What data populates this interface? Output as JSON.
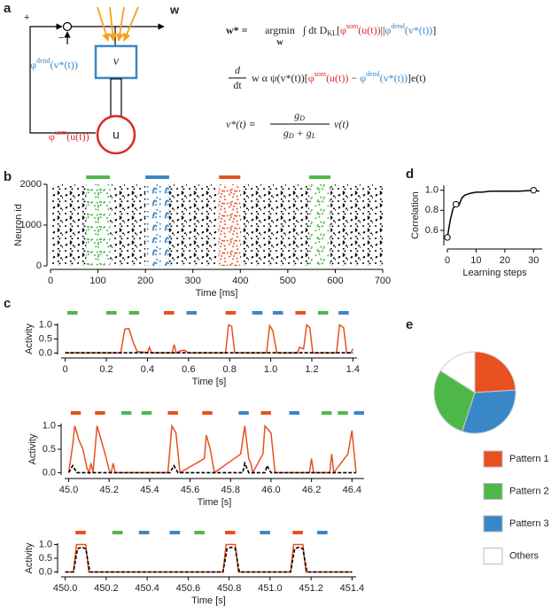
{
  "panel_labels": [
    "a",
    "b",
    "c",
    "d",
    "e"
  ],
  "panel_a": {
    "plus": "+",
    "minus": "−",
    "w": "w",
    "v": "v",
    "u": "u",
    "dend": [
      "φ",
      "dend",
      "(v*(t))"
    ],
    "som": [
      "φ",
      "som",
      "(u(t))"
    ],
    "eq1": [
      "w* =",
      "argmin",
      "w",
      "∫ dt D",
      "KL",
      "[",
      "φ",
      "som",
      "(u(t))",
      "||",
      "φ",
      "dend",
      "(v*(t))",
      "]"
    ],
    "eq2": [
      "d",
      "dt",
      "w α ψ(v*(t))[",
      "φ",
      "som",
      "(u(t))",
      " − ",
      "φ",
      "dend",
      "(v*(t))",
      "]e(t)"
    ],
    "eq3": [
      "v*(t) ≡",
      "g",
      "D",
      "g",
      "D",
      " + g",
      "L",
      "v(t)"
    ]
  },
  "chart_data": [
    {
      "type": "raster",
      "xlabel": "Time [ms]",
      "ylabel": "Neuron id",
      "xlim": [
        0,
        700
      ],
      "xticks": [
        0,
        100,
        200,
        300,
        400,
        500,
        600,
        700
      ],
      "ylim": [
        0,
        2000
      ],
      "yticks": [
        0,
        1000,
        2000
      ],
      "bands": [
        {
          "start": 75,
          "end": 125,
          "color": "#4db848"
        },
        {
          "start": 200,
          "end": 250,
          "color": "#3a87c8"
        },
        {
          "start": 355,
          "end": 400,
          "color": "#e8501f"
        },
        {
          "start": 545,
          "end": 590,
          "color": "#4db848"
        }
      ]
    },
    {
      "type": "line",
      "xlabel": "Learning steps",
      "ylabel": "Correlation",
      "xlim": [
        0,
        33
      ],
      "xticks": [
        0,
        10,
        20,
        30
      ],
      "ylim": [
        0.45,
        1.05
      ],
      "yticks": [
        0.6,
        0.8,
        {
          "value": 1.0,
          "label": "1.0"
        }
      ],
      "series": [
        {
          "color": "#000000",
          "x": [
            0,
            1,
            2,
            3,
            4,
            5,
            6,
            7,
            8,
            10,
            12,
            15,
            20,
            25,
            30,
            32
          ],
          "values": [
            0.53,
            0.7,
            0.82,
            0.86,
            0.85,
            0.92,
            0.95,
            0.96,
            0.97,
            0.98,
            0.98,
            0.99,
            0.99,
            0.99,
            1.0,
            0.99
          ]
        }
      ],
      "markers": {
        "x": [
          0,
          3,
          30
        ],
        "values": [
          0.53,
          0.86,
          1.0
        ]
      }
    },
    {
      "type": "line",
      "xlabel": "Time [s]",
      "ylabel": "Activity",
      "xlim": [
        -0.02,
        1.42
      ],
      "xticks": [
        0,
        0.2,
        0.4,
        0.6,
        0.8,
        {
          "value": 1.0,
          "label": "1.0"
        },
        1.2,
        1.4
      ],
      "ylim": [
        -0.05,
        1.05
      ],
      "yticks": [
        {
          "value": 0,
          "label": "0.0"
        },
        0.5,
        {
          "value": 1,
          "label": "1.0"
        }
      ],
      "bars": [
        {
          "start": 0.01,
          "end": 0.06,
          "color": "#4db848"
        },
        {
          "start": 0.2,
          "end": 0.25,
          "color": "#4db848"
        },
        {
          "start": 0.31,
          "end": 0.36,
          "color": "#4db848"
        },
        {
          "start": 0.48,
          "end": 0.53,
          "color": "#e8501f"
        },
        {
          "start": 0.59,
          "end": 0.64,
          "color": "#3a87c8"
        },
        {
          "start": 0.78,
          "end": 0.83,
          "color": "#e8501f"
        },
        {
          "start": 0.91,
          "end": 0.96,
          "color": "#3a87c8"
        },
        {
          "start": 1.01,
          "end": 1.06,
          "color": "#3a87c8"
        },
        {
          "start": 1.12,
          "end": 1.17,
          "color": "#e8501f"
        },
        {
          "start": 1.23,
          "end": 1.28,
          "color": "#4db848"
        },
        {
          "start": 1.33,
          "end": 1.38,
          "color": "#3a87c8"
        }
      ],
      "series": [
        {
          "color": "#e8501f",
          "x": [
            0,
            0.27,
            0.29,
            0.31,
            0.33,
            0.35,
            0.4,
            0.41,
            0.42,
            0.52,
            0.53,
            0.54,
            0.56,
            0.58,
            0.6,
            0.78,
            0.795,
            0.81,
            0.825,
            0.98,
            0.995,
            1.01,
            1.03,
            1.13,
            1.14,
            1.16,
            1.175,
            1.19,
            1.205,
            1.32,
            1.335,
            1.355,
            1.37,
            1.39,
            1.4
          ],
          "values": [
            0,
            0,
            0.85,
            0.87,
            0.4,
            0.05,
            0.02,
            0.2,
            0,
            0,
            0.3,
            0,
            0.08,
            0.1,
            0,
            0,
            1.0,
            0.95,
            0,
            0,
            0.97,
            0.8,
            0,
            0,
            0.2,
            0.15,
            1.0,
            0.9,
            0,
            0,
            1.0,
            0.9,
            0,
            0,
            0.15
          ]
        },
        {
          "color": "#000000",
          "dash": true,
          "x": [
            0,
            1.4
          ],
          "values": [
            0.01,
            0.01
          ]
        }
      ]
    },
    {
      "type": "line",
      "xlabel": "Time [s]",
      "ylabel": "Activity",
      "xlim": [
        44.98,
        46.46
      ],
      "xticks": [
        {
          "value": 45.0,
          "label": "45.0"
        },
        45.2,
        45.4,
        45.6,
        45.8,
        {
          "value": 46.0,
          "label": "46.0"
        },
        46.2,
        46.4
      ],
      "ylim": [
        -0.05,
        1.05
      ],
      "yticks": [
        {
          "value": 0,
          "label": "0.0"
        },
        0.5,
        {
          "value": 1,
          "label": "1.0"
        }
      ],
      "bars": [
        {
          "start": 45.01,
          "end": 45.06,
          "color": "#e8501f"
        },
        {
          "start": 45.13,
          "end": 45.18,
          "color": "#e8501f"
        },
        {
          "start": 45.26,
          "end": 45.31,
          "color": "#4db848"
        },
        {
          "start": 45.36,
          "end": 45.41,
          "color": "#4db848"
        },
        {
          "start": 45.49,
          "end": 45.54,
          "color": "#e8501f"
        },
        {
          "start": 45.66,
          "end": 45.71,
          "color": "#e8501f"
        },
        {
          "start": 45.84,
          "end": 45.89,
          "color": "#3a87c8"
        },
        {
          "start": 45.95,
          "end": 46.0,
          "color": "#e8501f"
        },
        {
          "start": 46.09,
          "end": 46.14,
          "color": "#3a87c8"
        },
        {
          "start": 46.25,
          "end": 46.3,
          "color": "#4db848"
        },
        {
          "start": 46.33,
          "end": 46.38,
          "color": "#4db848"
        },
        {
          "start": 46.41,
          "end": 46.46,
          "color": "#3a87c8"
        }
      ],
      "series": [
        {
          "color": "#e8501f",
          "x": [
            45.0,
            45.02,
            45.03,
            45.05,
            45.07,
            45.09,
            45.1,
            45.11,
            45.12,
            45.13,
            45.14,
            45.16,
            45.18,
            45.2,
            45.21,
            45.22,
            45.23,
            45.49,
            45.5,
            45.51,
            45.53,
            45.55,
            45.67,
            45.68,
            45.7,
            45.72,
            45.85,
            45.87,
            45.89,
            45.9,
            45.91,
            45.96,
            45.97,
            46.0,
            46.02,
            46.19,
            46.2,
            46.21,
            46.29,
            46.3,
            46.31,
            46.38,
            46.4,
            46.42
          ],
          "values": [
            0,
            0.6,
            1.0,
            0.7,
            0.5,
            0.1,
            0,
            0.2,
            0,
            0.5,
            1.0,
            0.7,
            0.4,
            0.05,
            0,
            0.2,
            0,
            0,
            0.5,
            1.0,
            0.85,
            0,
            0.3,
            0.8,
            0.5,
            0,
            0.4,
            1.0,
            0.3,
            0.2,
            0,
            0.4,
            1.0,
            0.85,
            0,
            0,
            0.3,
            0,
            0,
            0.4,
            0,
            0.4,
            0.9,
            0
          ]
        },
        {
          "color": "#000000",
          "dash": true,
          "x": [
            45.0,
            45.02,
            45.04,
            45.5,
            45.52,
            45.54,
            45.86,
            45.87,
            45.89,
            45.97,
            45.98,
            46.0,
            46.42
          ],
          "values": [
            0,
            0.15,
            0,
            0,
            0.15,
            0,
            0,
            0.2,
            0,
            0,
            0.15,
            0,
            0
          ]
        }
      ]
    },
    {
      "type": "line",
      "xlabel": "Time [s]",
      "ylabel": "Activity",
      "xlim": [
        449.98,
        451.42
      ],
      "xticks": [
        {
          "value": 450.0,
          "label": "450.0"
        },
        450.2,
        450.4,
        450.6,
        450.8,
        {
          "value": 451.0,
          "label": "451.0"
        },
        451.2,
        451.4
      ],
      "ylim": [
        -0.05,
        1.05
      ],
      "yticks": [
        {
          "value": 0,
          "label": "0.0"
        },
        0.5,
        {
          "value": 1,
          "label": "1.0"
        }
      ],
      "bars": [
        {
          "start": 450.05,
          "end": 450.1,
          "color": "#e8501f"
        },
        {
          "start": 450.23,
          "end": 450.28,
          "color": "#4db848"
        },
        {
          "start": 450.36,
          "end": 450.41,
          "color": "#3a87c8"
        },
        {
          "start": 450.51,
          "end": 450.56,
          "color": "#3a87c8"
        },
        {
          "start": 450.63,
          "end": 450.68,
          "color": "#4db848"
        },
        {
          "start": 450.78,
          "end": 450.83,
          "color": "#e8501f"
        },
        {
          "start": 450.95,
          "end": 451.0,
          "color": "#3a87c8"
        },
        {
          "start": 451.11,
          "end": 451.16,
          "color": "#e8501f"
        },
        {
          "start": 451.23,
          "end": 451.28,
          "color": "#3a87c8"
        }
      ],
      "series": [
        {
          "color": "#e8501f",
          "x": [
            450.0,
            450.04,
            450.055,
            450.1,
            450.115,
            450.77,
            450.785,
            450.83,
            450.845,
            451.1,
            451.115,
            451.16,
            451.175,
            451.4
          ],
          "values": [
            0,
            0,
            1.0,
            1.0,
            0,
            0,
            1.0,
            1.0,
            0,
            0,
            1.0,
            1.0,
            0,
            0
          ]
        },
        {
          "color": "#000000",
          "dash": true,
          "x": [
            450.0,
            450.04,
            450.06,
            450.08,
            450.1,
            450.12,
            450.77,
            450.79,
            450.81,
            450.83,
            450.85,
            451.1,
            451.12,
            451.14,
            451.16,
            451.18,
            451.4
          ],
          "values": [
            0,
            0,
            0.85,
            0.9,
            0.85,
            0,
            0,
            0.85,
            0.9,
            0.85,
            0,
            0,
            0.85,
            0.9,
            0.85,
            0,
            0
          ]
        }
      ]
    },
    {
      "type": "pie",
      "categories": [
        "Pattern 1",
        "Pattern 2",
        "Pattern 3",
        "Others"
      ],
      "values": [
        24,
        29,
        31,
        16
      ],
      "colors": [
        "#e8501f",
        "#4db848",
        "#3a87c8",
        "#ffffff"
      ],
      "order": [
        0,
        2,
        1,
        3
      ]
    }
  ]
}
